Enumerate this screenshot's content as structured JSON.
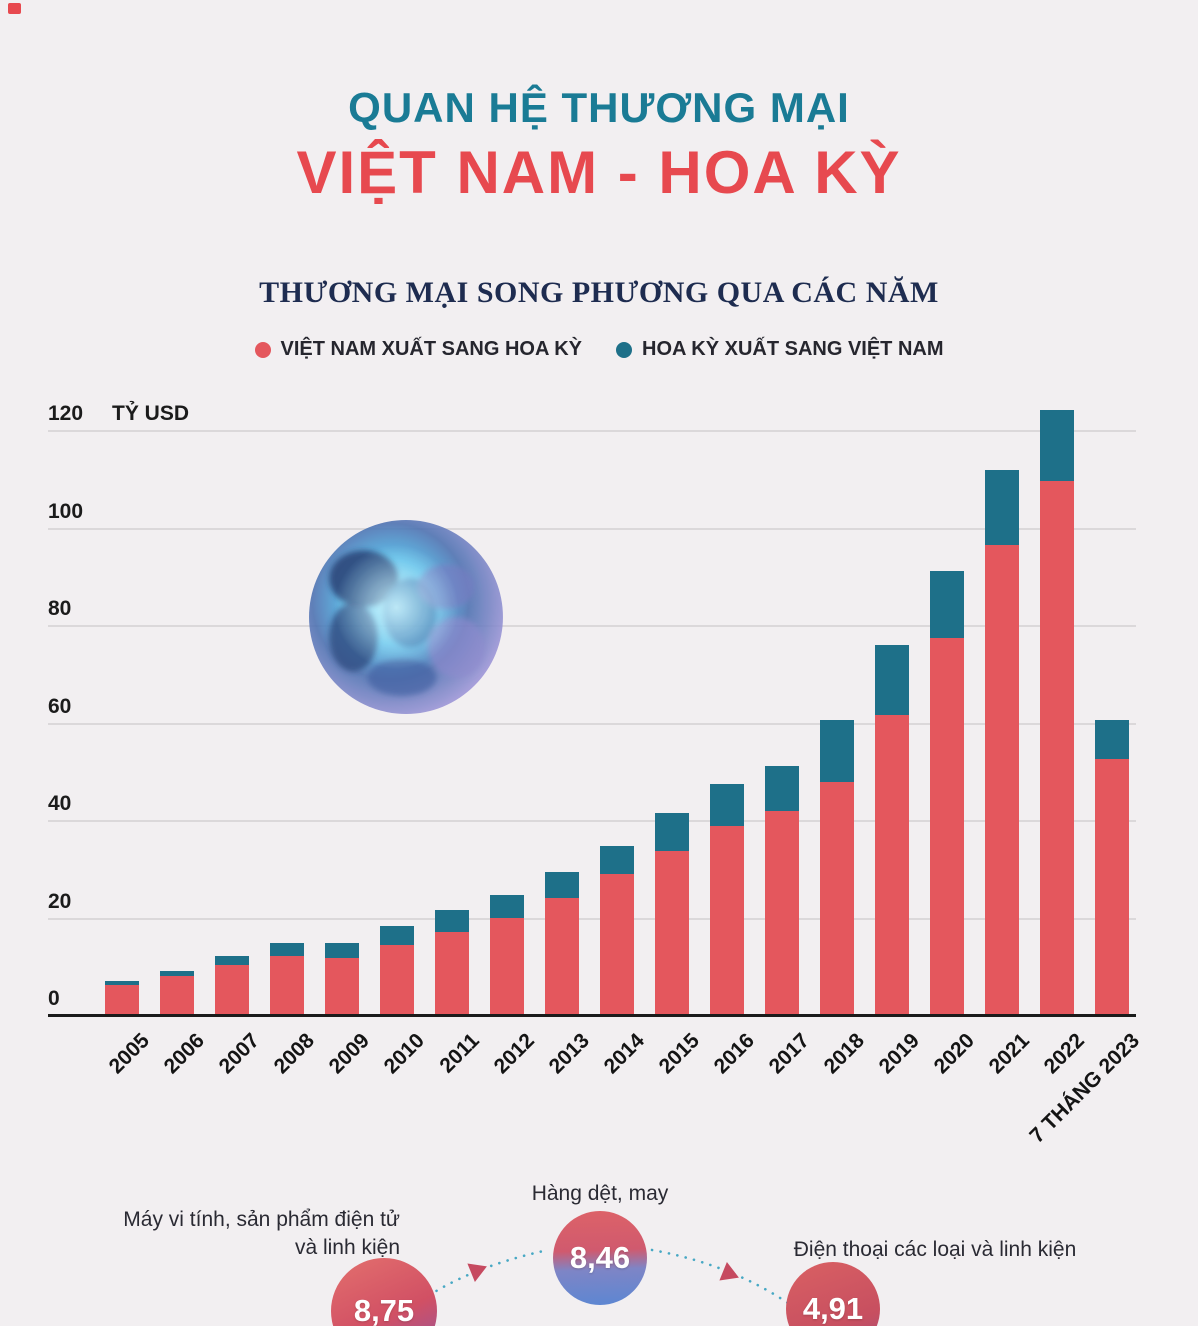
{
  "header": {
    "title_line1": "QUAN HỆ THƯƠNG MẠI",
    "title_line2": "VIỆT NAM - HOA KỲ"
  },
  "chart": {
    "subtitle": "THƯƠNG MẠI SONG PHƯƠNG QUA CÁC NĂM",
    "legend": [
      {
        "label": "VIỆT NAM XUẤT SANG HOA KỲ",
        "color": "#e4575d"
      },
      {
        "label": "HOA KỲ XUẤT SANG VIỆT NAM",
        "color": "#1e7089"
      }
    ]
  },
  "chart_data": {
    "type": "bar",
    "stacked": true,
    "title": "THƯƠNG MẠI SONG PHƯƠNG QUA CÁC NĂM",
    "ylabel": "TỶ USD",
    "xlabel": "",
    "ylim": [
      0,
      120
    ],
    "yticks": [
      0,
      20,
      40,
      60,
      80,
      100,
      120
    ],
    "grid": true,
    "legend_position": "top",
    "categories": [
      "2005",
      "2006",
      "2007",
      "2008",
      "2009",
      "2010",
      "2011",
      "2012",
      "2013",
      "2014",
      "2015",
      "2016",
      "2017",
      "2018",
      "2019",
      "2020",
      "2021",
      "2022",
      "7 THÁNG 2023"
    ],
    "series": [
      {
        "name": "VIỆT NAM XUẤT SANG HOA KỲ",
        "color": "#e4575d",
        "values": [
          5.9,
          7.8,
          10.1,
          11.9,
          11.4,
          14.2,
          16.9,
          19.7,
          23.9,
          28.7,
          33.5,
          38.5,
          41.6,
          47.5,
          61.3,
          77.1,
          96.3,
          109.4,
          52.4
        ]
      },
      {
        "name": "HOA KỲ XUẤT SANG VIỆT NAM",
        "color": "#1e7089",
        "values": [
          0.9,
          1.0,
          1.7,
          2.6,
          3.1,
          3.8,
          4.5,
          4.8,
          5.2,
          5.7,
          7.8,
          8.7,
          9.2,
          12.8,
          14.4,
          13.7,
          15.3,
          14.5,
          8.0
        ]
      }
    ]
  },
  "footer": {
    "left": {
      "label_line1": "Máy vi tính, sản phẩm điện tử",
      "label_line2": "và linh kiện",
      "value": "8,75"
    },
    "middle": {
      "label": "Hàng dệt, may",
      "value": "8,46"
    },
    "right": {
      "label": "Điện thoại các loại và linh kiện",
      "value": "4,91"
    }
  },
  "colors": {
    "background": "#f2eff1",
    "title_teal": "#1a7b95",
    "title_red": "#e7494f",
    "bar_red": "#e4575d",
    "bar_teal": "#1e7089",
    "gridline": "#dbd8da",
    "dotted_line": "#48a8c4",
    "arrow_red": "#c64a60"
  }
}
